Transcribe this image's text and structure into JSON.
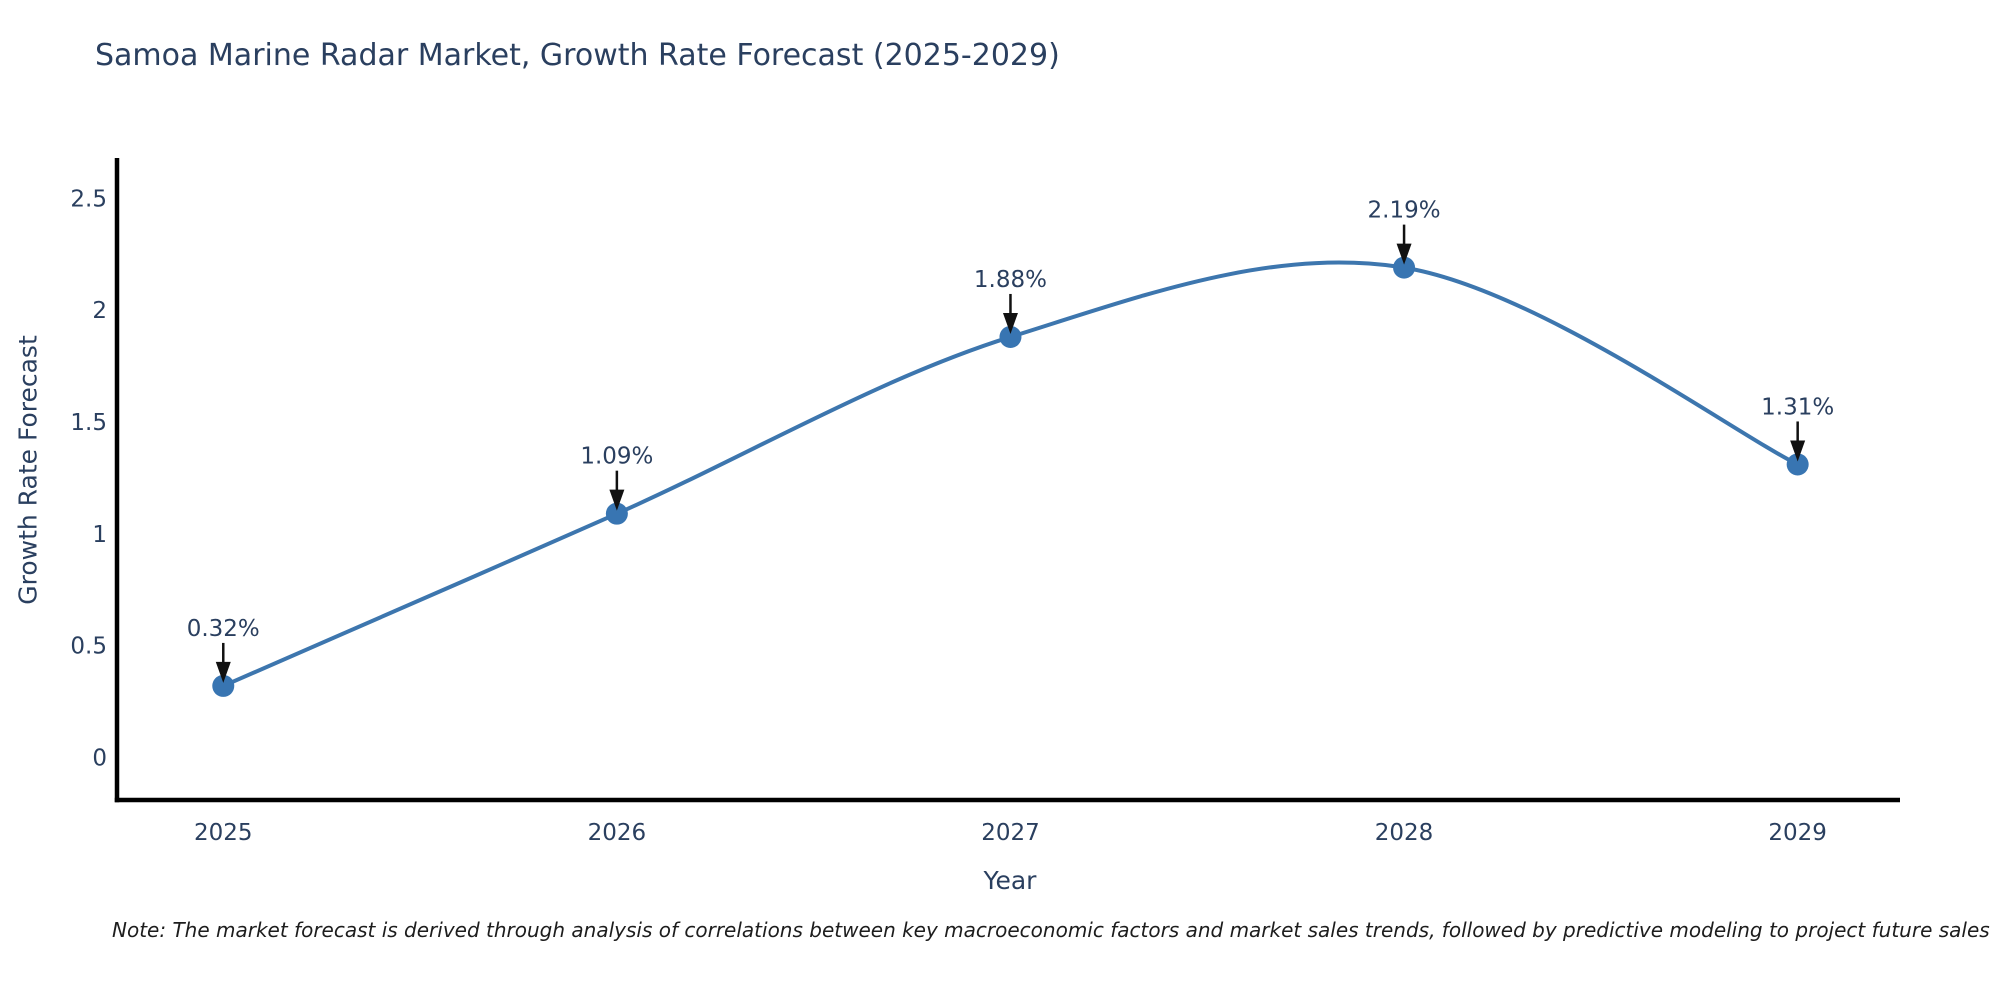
{
  "figure": {
    "note": "Note: The market forecast is derived through analysis of correlations between key macroeconomic factors and market sales trends, followed by predictive modeling to project future sales"
  },
  "chart_data": {
    "type": "line",
    "title": "Samoa Marine Radar Market, Growth Rate Forecast (2025-2029)",
    "xlabel": "Year",
    "ylabel": "Growth Rate Forecast",
    "x": [
      2025,
      2026,
      2027,
      2028,
      2029
    ],
    "xticks": [
      "2025",
      "2026",
      "2027",
      "2028",
      "2029"
    ],
    "series": [
      {
        "name": "Growth Rate Forecast",
        "values": [
          0.32,
          1.09,
          1.88,
          2.19,
          1.31
        ]
      }
    ],
    "point_labels": [
      "0.32%",
      "1.09%",
      "1.88%",
      "2.19%",
      "1.31%"
    ],
    "yticks": [
      "0",
      "0.5",
      "1",
      "1.5",
      "2",
      "2.5"
    ],
    "ytick_values": [
      0,
      0.5,
      1,
      1.5,
      2,
      2.5
    ],
    "xlim": [
      2024.73,
      2029.26
    ],
    "ylim": [
      -0.19,
      2.68
    ],
    "grid": false,
    "legend": "none",
    "line_shape": "spline",
    "colors": {
      "line": "#3d76ae",
      "marker": "#3875b2",
      "arrow": "#111111",
      "text": "#2a3f5f",
      "axis": "#000000"
    }
  }
}
